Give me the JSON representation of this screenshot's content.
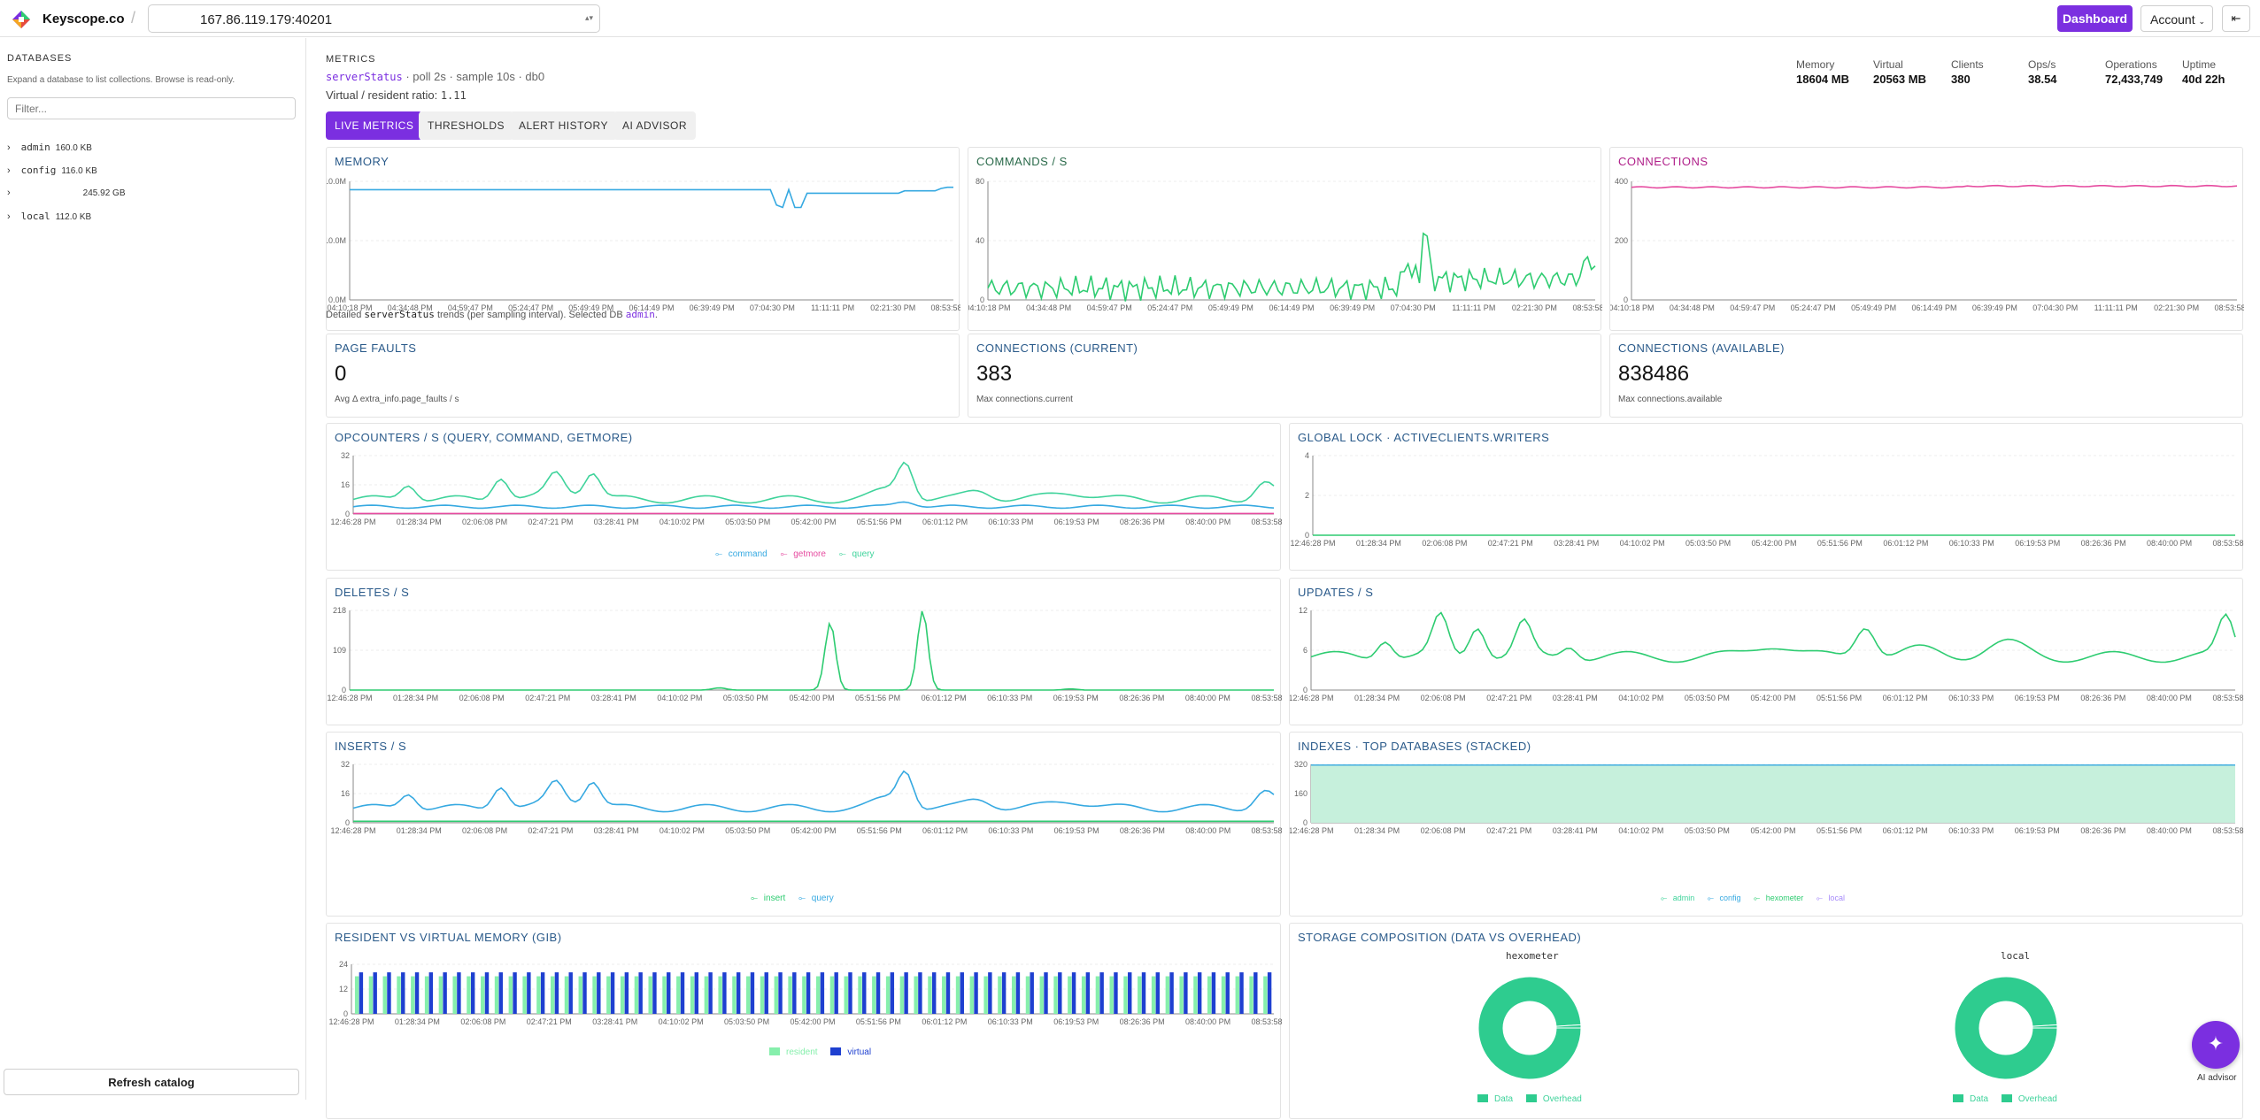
{
  "app": {
    "brand": "Keyscope.co",
    "address": "167.86.119.179:40201",
    "dashboard_label": "Dashboard",
    "account_label": "Account",
    "logout_icon": "logout-icon"
  },
  "sidebar": {
    "title": "DATABASES",
    "help": "Expand a database to list collections. Browse is read-only.",
    "filter_placeholder": "Filter...",
    "dbs": [
      {
        "name": "admin",
        "size": "160.0 KB"
      },
      {
        "name": "config",
        "size": "116.0 KB"
      },
      {
        "name": "",
        "size": "245.92 GB"
      },
      {
        "name": "local",
        "size": "112.0 KB"
      }
    ],
    "refresh_label": "Refresh catalog"
  },
  "header": {
    "section": "METRICS",
    "cmd": "serverStatus",
    "sub": " · poll 2s · sample 10s · db0",
    "ratio_label": "Virtual / resident ratio: ",
    "ratio_value": "1.11"
  },
  "stats": [
    {
      "label": "Memory",
      "value": "18604 MB"
    },
    {
      "label": "Virtual",
      "value": "20563 MB"
    },
    {
      "label": "Clients",
      "value": "380"
    },
    {
      "label": "Ops/s",
      "value": "38.54"
    },
    {
      "label": "Operations",
      "value": "72,433,749"
    },
    {
      "label": "Uptime",
      "value": "40d 22h"
    }
  ],
  "tabs": [
    "LIVE METRICS",
    "THRESHOLDS",
    "ALERT HISTORY",
    "AI ADVISOR"
  ],
  "note": {
    "prefix": "Detailed ",
    "cmd": "serverStatus",
    "middle": " trends (per sampling interval). Selected DB ",
    "db": "admin",
    "suffix": "."
  },
  "kpis": [
    {
      "title": "PAGE FAULTS",
      "value": "0",
      "sub": "Avg Δ extra_info.page_faults / s"
    },
    {
      "title": "CONNECTIONS (CURRENT)",
      "value": "383",
      "sub": "Max connections.current"
    },
    {
      "title": "CONNECTIONS (AVAILABLE)",
      "value": "838486",
      "sub": "Max connections.available"
    }
  ],
  "colors": {
    "accent": "#7b2fe0",
    "green": "#2ecc71",
    "cyan": "#36a9e1",
    "pink": "#e64ca0",
    "mint": "#3fd39b",
    "blue": "#1e40d0"
  },
  "chart_data": [
    {
      "id": "memory",
      "type": "line",
      "title": "MEMORY",
      "yticks": [
        "10.0M",
        "10.0M",
        "0.0M"
      ],
      "xticks": [
        "04:10:18 PM",
        "04:34:48 PM",
        "04:59:47 PM",
        "05:24:47 PM",
        "05:49:49 PM",
        "06:14:49 PM",
        "06:39:49 PM",
        "07:04:30 PM",
        "11:11:11 PM",
        "02:21:30 PM",
        "08:53:58 PM"
      ],
      "series": [
        {
          "values": [
            0.93,
            0.93,
            0.93,
            0.93,
            0.93,
            0.93,
            0.93,
            0.93,
            0.93,
            0.93,
            0.93,
            0.93,
            0.93,
            0.93,
            0.93,
            0.93,
            0.93,
            0.93,
            0.93,
            0.93,
            0.93,
            0.93,
            0.93,
            0.93,
            0.93,
            0.93,
            0.93,
            0.93,
            0.93,
            0.93,
            0.93,
            0.93,
            0.93,
            0.93,
            0.93,
            0.93,
            0.93,
            0.93,
            0.93,
            0.93,
            0.93,
            0.93,
            0.93,
            0.93,
            0.93,
            0.93,
            0.93,
            0.93,
            0.93,
            0.93,
            0.93,
            0.93,
            0.93,
            0.93,
            0.93,
            0.93,
            0.93,
            0.93,
            0.93,
            0.93,
            0.93,
            0.93,
            0.93,
            0.93,
            0.93,
            0.93,
            0.93,
            0.93,
            0.93,
            0.93,
            0.8,
            0.78,
            0.93,
            0.78,
            0.78,
            0.9,
            0.9,
            0.9,
            0.9,
            0.9,
            0.9,
            0.9,
            0.9,
            0.9,
            0.9,
            0.9,
            0.9,
            0.9,
            0.9,
            0.9,
            0.9,
            0.92,
            0.92,
            0.92,
            0.92,
            0.92,
            0.92,
            0.94,
            0.95,
            0.95
          ]
        }
      ]
    },
    {
      "id": "commands",
      "type": "line",
      "title": "COMMANDS / S",
      "yticks": [
        "80",
        "40",
        "0"
      ],
      "ymax": 80,
      "xticks": [
        "04:10:18 PM",
        "04:34:48 PM",
        "04:59:47 PM",
        "05:24:47 PM",
        "05:49:49 PM",
        "06:14:49 PM",
        "06:39:49 PM",
        "07:04:30 PM",
        "11:11:11 PM",
        "02:21:30 PM",
        "08:53:58 PM"
      ]
    },
    {
      "id": "connections",
      "type": "line",
      "title": "CONNECTIONS",
      "yticks": [
        "400",
        "200",
        "0"
      ],
      "ymax": 400,
      "xticks": [
        "04:10:18 PM",
        "04:34:48 PM",
        "04:59:47 PM",
        "05:24:47 PM",
        "05:49:49 PM",
        "06:14:49 PM",
        "06:39:49 PM",
        "07:04:30 PM",
        "11:11:11 PM",
        "02:21:30 PM",
        "08:53:58 PM"
      ]
    },
    {
      "id": "opcounters",
      "type": "line",
      "title": "OPCOUNTERS / S (QUERY, COMMAND, GETMORE)",
      "yticks": [
        "32",
        "16",
        "0"
      ],
      "ymax": 32,
      "legend": [
        "command",
        "getmore",
        "query"
      ],
      "xticks": [
        "12:46:28 PM",
        "01:28:34 PM",
        "02:06:08 PM",
        "02:47:21 PM",
        "03:28:41 PM",
        "04:10:02 PM",
        "05:03:50 PM",
        "05:42:00 PM",
        "05:51:56 PM",
        "06:01:12 PM",
        "06:10:33 PM",
        "06:19:53 PM",
        "08:26:36 PM",
        "08:40:00 PM",
        "08:53:58 PM"
      ]
    },
    {
      "id": "globallock",
      "type": "line",
      "title": "GLOBAL LOCK · ACTIVECLIENTS.WRITERS",
      "yticks": [
        "4",
        "2",
        "0"
      ],
      "ymax": 4,
      "xticks": [
        "12:46:28 PM",
        "01:28:34 PM",
        "02:06:08 PM",
        "02:47:21 PM",
        "03:28:41 PM",
        "04:10:02 PM",
        "05:03:50 PM",
        "05:42:00 PM",
        "05:51:56 PM",
        "06:01:12 PM",
        "06:10:33 PM",
        "06:19:53 PM",
        "08:26:36 PM",
        "08:40:00 PM",
        "08:53:58 PM"
      ]
    },
    {
      "id": "deletes",
      "type": "line",
      "title": "DELETES / S",
      "yticks": [
        "218",
        "109",
        "0"
      ],
      "ymax": 218,
      "xticks": [
        "12:46:28 PM",
        "01:28:34 PM",
        "02:06:08 PM",
        "02:47:21 PM",
        "03:28:41 PM",
        "04:10:02 PM",
        "05:03:50 PM",
        "05:42:00 PM",
        "05:51:56 PM",
        "06:01:12 PM",
        "06:10:33 PM",
        "06:19:53 PM",
        "08:26:36 PM",
        "08:40:00 PM",
        "08:53:58 PM"
      ]
    },
    {
      "id": "updates",
      "type": "line",
      "title": "UPDATES / S",
      "yticks": [
        "12",
        "6",
        "0"
      ],
      "ymax": 12,
      "xticks": [
        "12:46:28 PM",
        "01:28:34 PM",
        "02:06:08 PM",
        "02:47:21 PM",
        "03:28:41 PM",
        "04:10:02 PM",
        "05:03:50 PM",
        "05:42:00 PM",
        "05:51:56 PM",
        "06:01:12 PM",
        "06:10:33 PM",
        "06:19:53 PM",
        "08:26:36 PM",
        "08:40:00 PM",
        "08:53:58 PM"
      ]
    },
    {
      "id": "inserts",
      "type": "line",
      "title": "INSERTS / S",
      "yticks": [
        "32",
        "16",
        "0"
      ],
      "ymax": 32,
      "legend": [
        "insert",
        "query"
      ],
      "xticks": [
        "12:46:28 PM",
        "01:28:34 PM",
        "02:06:08 PM",
        "02:47:21 PM",
        "03:28:41 PM",
        "04:10:02 PM",
        "05:03:50 PM",
        "05:42:00 PM",
        "05:51:56 PM",
        "06:01:12 PM",
        "06:10:33 PM",
        "06:19:53 PM",
        "08:26:36 PM",
        "08:40:00 PM",
        "08:53:58 PM"
      ]
    },
    {
      "id": "indexes",
      "type": "area",
      "title": "INDEXES · TOP DATABASES (STACKED)",
      "yticks": [
        "320",
        "160",
        "0"
      ],
      "ymax": 320,
      "legend": [
        "admin",
        "config",
        "hexometer",
        "local"
      ],
      "xticks": [
        "12:46:28 PM",
        "01:28:34 PM",
        "02:06:08 PM",
        "02:47:21 PM",
        "03:28:41 PM",
        "04:10:02 PM",
        "05:03:50 PM",
        "05:42:00 PM",
        "05:51:56 PM",
        "06:01:12 PM",
        "06:10:33 PM",
        "06:19:53 PM",
        "08:26:36 PM",
        "08:40:00 PM",
        "08:53:58 PM"
      ]
    },
    {
      "id": "resident",
      "type": "bar",
      "title": "RESIDENT VS VIRTUAL MEMORY (GIB)",
      "yticks": [
        "24",
        "12",
        "0"
      ],
      "ymax": 24,
      "legend": [
        "resident",
        "virtual"
      ],
      "xticks": [
        "12:46:28 PM",
        "01:28:34 PM",
        "02:06:08 PM",
        "02:47:21 PM",
        "03:28:41 PM",
        "04:10:02 PM",
        "05:03:50 PM",
        "05:42:00 PM",
        "05:51:56 PM",
        "06:01:12 PM",
        "06:10:33 PM",
        "06:19:53 PM",
        "08:26:36 PM",
        "08:40:00 PM",
        "08:53:58 PM"
      ],
      "resident": 18.2,
      "virtual": 20.1
    },
    {
      "id": "storage",
      "type": "pie",
      "title": "STORAGE COMPOSITION (DATA VS OVERHEAD)",
      "pies": [
        {
          "name": "hexometer",
          "data": 0.99,
          "overhead": 0.01
        },
        {
          "name": "local",
          "data": 0.99,
          "overhead": 0.01
        }
      ],
      "legend": [
        "Data",
        "Overhead"
      ]
    }
  ],
  "ai": {
    "caption": "AI advisor",
    "icon": "sparkle-icon"
  }
}
